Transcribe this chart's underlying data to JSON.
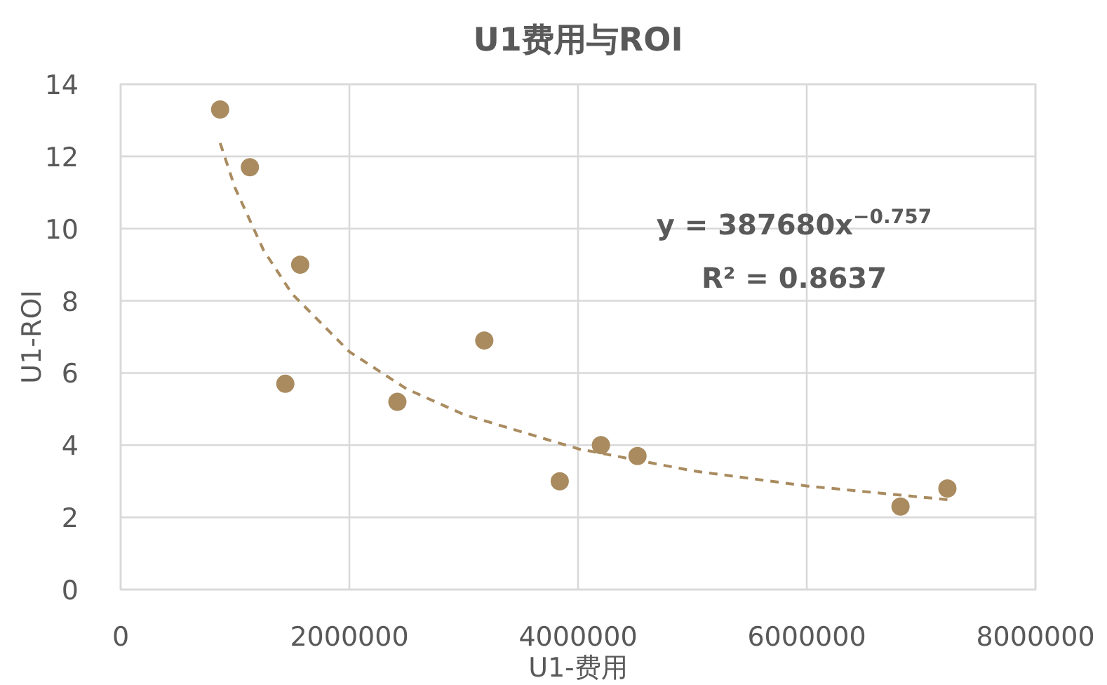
{
  "chart_data": {
    "type": "scatter",
    "title": "U1费用与ROI",
    "xlabel": "U1-费用",
    "ylabel": "U1-ROI",
    "xlim": [
      0,
      8000000
    ],
    "xticks": [
      0,
      2000000,
      4000000,
      6000000,
      8000000
    ],
    "ylim": [
      0,
      14
    ],
    "yticks": [
      0,
      2,
      4,
      6,
      8,
      10,
      12,
      14
    ],
    "grid": true,
    "annotations": [
      "y = 387680x$^{−0.757}$",
      "R² = 0.8637"
    ],
    "series": [
      {
        "color": "#a98b5f",
        "marker": "circle",
        "x": [
          870000,
          1130000,
          1570000,
          1440000,
          2420000,
          3180000,
          3840000,
          4200000,
          4520000,
          6820000,
          7230000
        ],
        "values": [
          13.3,
          11.7,
          9.0,
          5.7,
          5.2,
          6.9,
          3.0,
          4.0,
          3.7,
          2.3,
          2.8
        ]
      },
      {
        "type": "line",
        "color": "#a98b5f",
        "marker": "none",
        "line_style": "dashed",
        "x": [
          870000,
          1000000,
          1250000,
          1500000,
          2000000,
          2500000,
          3000000,
          4000000,
          5000000,
          6000000,
          7230000
        ],
        "values": [
          12.37,
          11.13,
          9.4,
          8.19,
          6.59,
          5.56,
          4.85,
          3.9,
          3.29,
          2.87,
          2.49
        ]
      }
    ]
  }
}
